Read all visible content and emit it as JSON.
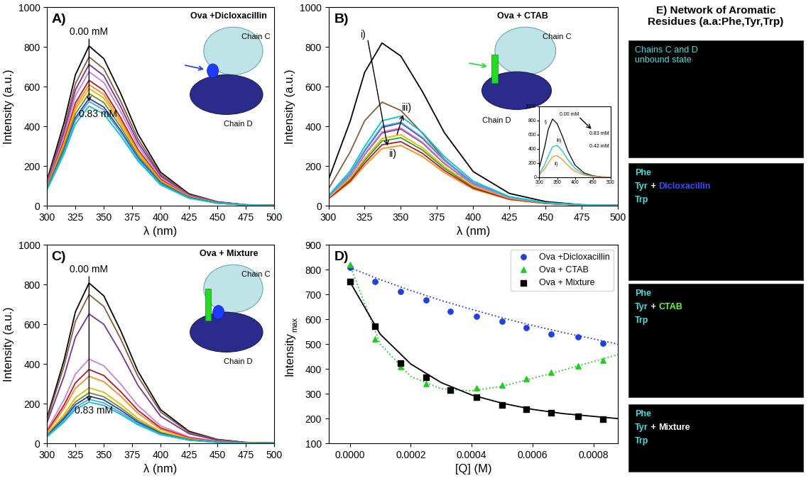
{
  "chart_data": [
    {
      "type": "line",
      "panel_label": "A)",
      "inset_title": "Ova +Dicloxacillin",
      "chain_labels": [
        "Chain C",
        "Chain D"
      ],
      "xlabel": "λ (nm)",
      "ylabel": "Intensity (a.u.)",
      "xlim": [
        300,
        500
      ],
      "ylim": [
        0,
        1000
      ],
      "xticks": [
        300,
        325,
        350,
        375,
        400,
        425,
        450,
        475,
        500
      ],
      "yticks": [
        0,
        200,
        400,
        600,
        800,
        1000
      ],
      "annotations": [
        "0.00 mM",
        "0.83 mM"
      ],
      "x": [
        300,
        315,
        325,
        337,
        350,
        365,
        380,
        400,
        425,
        450,
        475,
        500
      ],
      "series": [
        {
          "color": "#000000",
          "values": [
            129,
            419,
            660,
            805,
            741,
            564,
            362,
            169,
            60,
            20,
            5,
            2
          ]
        },
        {
          "color": "#8b5a3c",
          "values": [
            120,
            390,
            615,
            750,
            690,
            525,
            338,
            158,
            56,
            19,
            5,
            2
          ]
        },
        {
          "color": "#7b3294",
          "values": [
            114,
            370,
            584,
            712,
            655,
            498,
            320,
            150,
            53,
            18,
            4,
            1
          ]
        },
        {
          "color": "#d37cd3",
          "values": [
            108,
            351,
            554,
            675,
            621,
            473,
            304,
            142,
            51,
            17,
            4,
            1
          ]
        },
        {
          "color": "#b2182b",
          "values": [
            101,
            329,
            518,
            632,
            581,
            442,
            284,
            133,
            47,
            16,
            4,
            1
          ]
        },
        {
          "color": "#ff8c1a",
          "values": [
            98,
            317,
            500,
            610,
            561,
            427,
            275,
            128,
            46,
            15,
            4,
            1
          ]
        },
        {
          "color": "#e6b800",
          "values": [
            94,
            307,
            484,
            590,
            543,
            413,
            266,
            124,
            44,
            15,
            4,
            1
          ]
        },
        {
          "color": "#6b8e23",
          "values": [
            90,
            294,
            463,
            565,
            520,
            396,
            254,
            119,
            42,
            14,
            3,
            1
          ]
        },
        {
          "color": "#1f3fbf",
          "values": [
            86,
            281,
            443,
            540,
            497,
            378,
            243,
            113,
            41,
            14,
            3,
            1
          ]
        },
        {
          "color": "#5aa0e6",
          "values": [
            84,
            273,
            431,
            525,
            483,
            368,
            236,
            110,
            39,
            13,
            3,
            1
          ]
        },
        {
          "color": "#00c8d2",
          "values": [
            80,
            261,
            412,
            502,
            462,
            351,
            226,
            105,
            38,
            13,
            3,
            1
          ]
        }
      ]
    },
    {
      "type": "line",
      "panel_label": "B)",
      "inset_title": "Ova + CTAB",
      "chain_labels": [
        "Chain C",
        "Chain D"
      ],
      "xlabel": "λ (nm)",
      "ylabel": "Intensity (a.u.)",
      "xlim": [
        300,
        500
      ],
      "ylim": [
        0,
        1000
      ],
      "xticks": [
        300,
        325,
        350,
        375,
        400,
        425,
        450,
        475,
        500
      ],
      "yticks": [
        0,
        200,
        400,
        600,
        800,
        1000
      ],
      "annotations": [
        "i)",
        "ii)",
        "iii)"
      ],
      "x": [
        300,
        315,
        325,
        337,
        350,
        365,
        380,
        400,
        425,
        450,
        475,
        500
      ],
      "series": [
        {
          "color": "#000000",
          "values": [
            131,
            426,
            672,
            820,
            754,
            574,
            369,
            172,
            62,
            21,
            5,
            2
          ]
        },
        {
          "color": "#8b5a3c",
          "values": [
            84,
            271,
            428,
            522,
            480,
            365,
            235,
            110,
            39,
            13,
            3,
            1
          ]
        },
        {
          "color": "#1f3fbf",
          "values": [
            47,
            162,
            276,
            395,
            417,
            340,
            230,
            115,
            43,
            15,
            4,
            1
          ]
        },
        {
          "color": "#7b3294",
          "values": [
            43,
            150,
            257,
            367,
            387,
            316,
            213,
            107,
            40,
            14,
            4,
            1
          ]
        },
        {
          "color": "#2ca02c",
          "values": [
            39,
            133,
            228,
            326,
            343,
            280,
            189,
            95,
            35,
            12,
            4,
            1
          ]
        },
        {
          "color": "#ff8c1a",
          "values": [
            34,
            118,
            202,
            288,
            304,
            248,
            167,
            84,
            31,
            11,
            3,
            1
          ]
        },
        {
          "color": "#b2182b",
          "values": [
            36,
            125,
            215,
            307,
            323,
            264,
            178,
            89,
            33,
            12,
            3,
            1
          ]
        },
        {
          "color": "#e6b800",
          "values": [
            40,
            139,
            237,
            339,
            358,
            292,
            197,
            99,
            37,
            13,
            4,
            1
          ]
        },
        {
          "color": "#d37cd3",
          "values": [
            44,
            152,
            260,
            372,
            392,
            320,
            216,
            108,
            40,
            14,
            4,
            1
          ]
        },
        {
          "color": "#5aa0e6",
          "values": [
            47,
            163,
            280,
            400,
            421,
            344,
            232,
            116,
            43,
            15,
            4,
            1
          ]
        },
        {
          "color": "#00c8d2",
          "values": [
            51,
            175,
            299,
            428,
            451,
            368,
            248,
            124,
            46,
            16,
            5,
            1
          ]
        }
      ],
      "inset": {
        "xlim": [
          300,
          500
        ],
        "ylim": [
          0,
          1000
        ],
        "xticks": [
          300,
          350,
          400,
          450,
          500
        ],
        "yticks": [
          0,
          200,
          400,
          600,
          800,
          1000
        ],
        "annotations": [
          "0.00 mM",
          "0.83 mM",
          "0.42 mM",
          "i)",
          "iii)",
          "ii)"
        ],
        "series": [
          {
            "color": "#000000",
            "values": [
              131,
              426,
              672,
              820,
              754,
              574,
              369,
              172,
              62,
              21,
              5,
              2
            ]
          },
          {
            "color": "#00c8d2",
            "values": [
              51,
              175,
              299,
              428,
              451,
              368,
              248,
              124,
              46,
              16,
              5,
              1
            ]
          },
          {
            "color": "#ff8c1a",
            "values": [
              34,
              118,
              202,
              288,
              304,
              248,
              167,
              84,
              31,
              11,
              3,
              1
            ]
          }
        ]
      }
    },
    {
      "type": "line",
      "panel_label": "C)",
      "inset_title": "Ova + Mixture",
      "chain_labels": [
        "Chain C",
        "Chain D"
      ],
      "xlabel": "λ (nm)",
      "ylabel": "Intensity (a.u.)",
      "xlim": [
        300,
        500
      ],
      "ylim": [
        0,
        1000
      ],
      "xticks": [
        300,
        325,
        350,
        375,
        400,
        425,
        450,
        475,
        500
      ],
      "yticks": [
        0,
        200,
        400,
        600,
        800,
        1000
      ],
      "annotations": [
        "0.00 mM",
        "0.83 mM"
      ],
      "x": [
        300,
        315,
        325,
        337,
        350,
        365,
        380,
        400,
        425,
        450,
        475,
        500
      ],
      "series": [
        {
          "color": "#000000",
          "values": [
            129,
            420,
            663,
            808,
            743,
            566,
            364,
            170,
            61,
            20,
            5,
            2
          ]
        },
        {
          "color": "#8b5a3c",
          "values": [
            120,
            390,
            615,
            750,
            690,
            525,
            338,
            158,
            56,
            19,
            5,
            2
          ]
        },
        {
          "color": "#7b3294",
          "values": [
            104,
            339,
            535,
            652,
            600,
            456,
            293,
            137,
            49,
            16,
            4,
            1
          ]
        },
        {
          "color": "#d37cd3",
          "values": [
            68,
            221,
            349,
            425,
            391,
            298,
            191,
            89,
            32,
            11,
            3,
            1
          ]
        },
        {
          "color": "#b2182b",
          "values": [
            60,
            193,
            305,
            372,
            342,
            260,
            167,
            78,
            28,
            9,
            2,
            1
          ]
        },
        {
          "color": "#ff8c1a",
          "values": [
            54,
            176,
            277,
            338,
            311,
            237,
            152,
            71,
            25,
            8,
            2,
            1
          ]
        },
        {
          "color": "#e6b800",
          "values": [
            45,
            146,
            230,
            280,
            258,
            196,
            126,
            59,
            21,
            7,
            2,
            1
          ]
        },
        {
          "color": "#6b8e23",
          "values": [
            41,
            133,
            209,
            255,
            235,
            179,
            115,
            54,
            19,
            6,
            2,
            1
          ]
        },
        {
          "color": "#1f3fbf",
          "values": [
            38,
            124,
            195,
            238,
            219,
            167,
            107,
            50,
            18,
            6,
            1,
            0
          ]
        },
        {
          "color": "#5aa0e6",
          "values": [
            36,
            115,
            182,
            222,
            204,
            155,
            100,
            47,
            17,
            6,
            1,
            0
          ]
        },
        {
          "color": "#00c8d2",
          "values": [
            33,
            108,
            171,
            208,
            191,
            146,
            94,
            44,
            16,
            5,
            1,
            0
          ]
        }
      ]
    },
    {
      "type": "scatter",
      "panel_label": "D)",
      "xlabel": "[Q] (M)",
      "ylabel": "Intensity",
      "ylabel_subscript": "max",
      "xlim": [
        -7e-05,
        0.00088
      ],
      "ylim": [
        100,
        900
      ],
      "xticks": [
        {
          "value": 0,
          "label": "0.0000"
        },
        {
          "value": 0.0002,
          "label": "0.0002"
        },
        {
          "value": 0.0004,
          "label": "0.0004"
        },
        {
          "value": 0.0006,
          "label": "0.0006"
        },
        {
          "value": 0.0008,
          "label": "0.0008"
        }
      ],
      "yticks": [
        100,
        200,
        300,
        400,
        500,
        600,
        700,
        800,
        900
      ],
      "legend": "upper right",
      "series": [
        {
          "name": "Ova +Dicloxacillin",
          "color": "#2040e0",
          "marker": "circle",
          "x": [
            0,
            8.3e-05,
            0.000166,
            0.00025,
            0.00033,
            0.000415,
            0.0005,
            0.00058,
            0.00066,
            0.00075,
            0.00083
          ],
          "values": [
            808,
            752,
            713,
            677,
            633,
            612,
            592,
            565,
            542,
            528,
            503
          ],
          "fit": {
            "line_style": "dotted",
            "x": [
              0,
              0.0001,
              0.0002,
              0.0003,
              0.0004,
              0.0005,
              0.0006,
              0.0007,
              0.00088
            ],
            "values": [
              808,
              760,
              716,
              676,
              640,
              606,
              575,
              547,
              500
            ]
          }
        },
        {
          "name": "Ova + CTAB",
          "color": "#22cc22",
          "marker": "triangle",
          "x": [
            0,
            8.3e-05,
            0.000166,
            0.00025,
            0.00033,
            0.000415,
            0.0005,
            0.00058,
            0.00066,
            0.00075,
            0.00083
          ],
          "values": [
            820,
            522,
            408,
            340,
            318,
            322,
            335,
            360,
            387,
            413,
            435
          ],
          "fit": {
            "line_style": "dotted",
            "x": [
              0,
              0.0001,
              0.0002,
              0.0003,
              0.0004,
              0.0005,
              0.0006,
              0.0007,
              0.00088
            ],
            "values": [
              820,
              500,
              370,
              320,
              312,
              330,
              362,
              395,
              458
            ]
          }
        },
        {
          "name": "Ova + Mixture",
          "color": "#000000",
          "marker": "square",
          "x": [
            0,
            8.3e-05,
            0.000166,
            0.00025,
            0.00033,
            0.000415,
            0.0005,
            0.00058,
            0.00066,
            0.00075,
            0.00083
          ],
          "values": [
            752,
            572,
            423,
            367,
            315,
            287,
            255,
            238,
            222,
            208,
            198
          ],
          "fit": {
            "line_style": "solid",
            "x": [
              0,
              0.0001,
              0.0002,
              0.0003,
              0.0004,
              0.0005,
              0.0006,
              0.0007,
              0.00088
            ],
            "values": [
              752,
              540,
              420,
              345,
              295,
              262,
              237,
              220,
              200
            ]
          }
        }
      ]
    }
  ],
  "network_panel": {
    "title": "E) Network of Aromatic\nResidues (a.a:Phe,Tyr,Trp)",
    "boxes": [
      {
        "lines": [
          "Chains C and D",
          "unbound state"
        ],
        "color": "#40e0e0"
      },
      {
        "lines": [
          "Phe",
          "Tyr",
          "Trp"
        ],
        "color": "#40e0e0",
        "joiner": "+",
        "joiner_color": "#ffffff",
        "partner": "Dicloxacillin",
        "partner_color": "#3a4cff"
      },
      {
        "lines": [
          "Phe",
          "Tyr",
          "Trp"
        ],
        "color": "#40e0e0",
        "joiner": "+",
        "joiner_color": "#ffffff",
        "partner": "CTAB",
        "partner_color": "#66ff33"
      },
      {
        "lines": [
          "Phe",
          "Tyr",
          "Trp"
        ],
        "color": "#40e0e0",
        "joiner": "+",
        "joiner_color": "#ffffff",
        "partner": "Mixture",
        "partner_color": "#ffffff"
      }
    ]
  }
}
